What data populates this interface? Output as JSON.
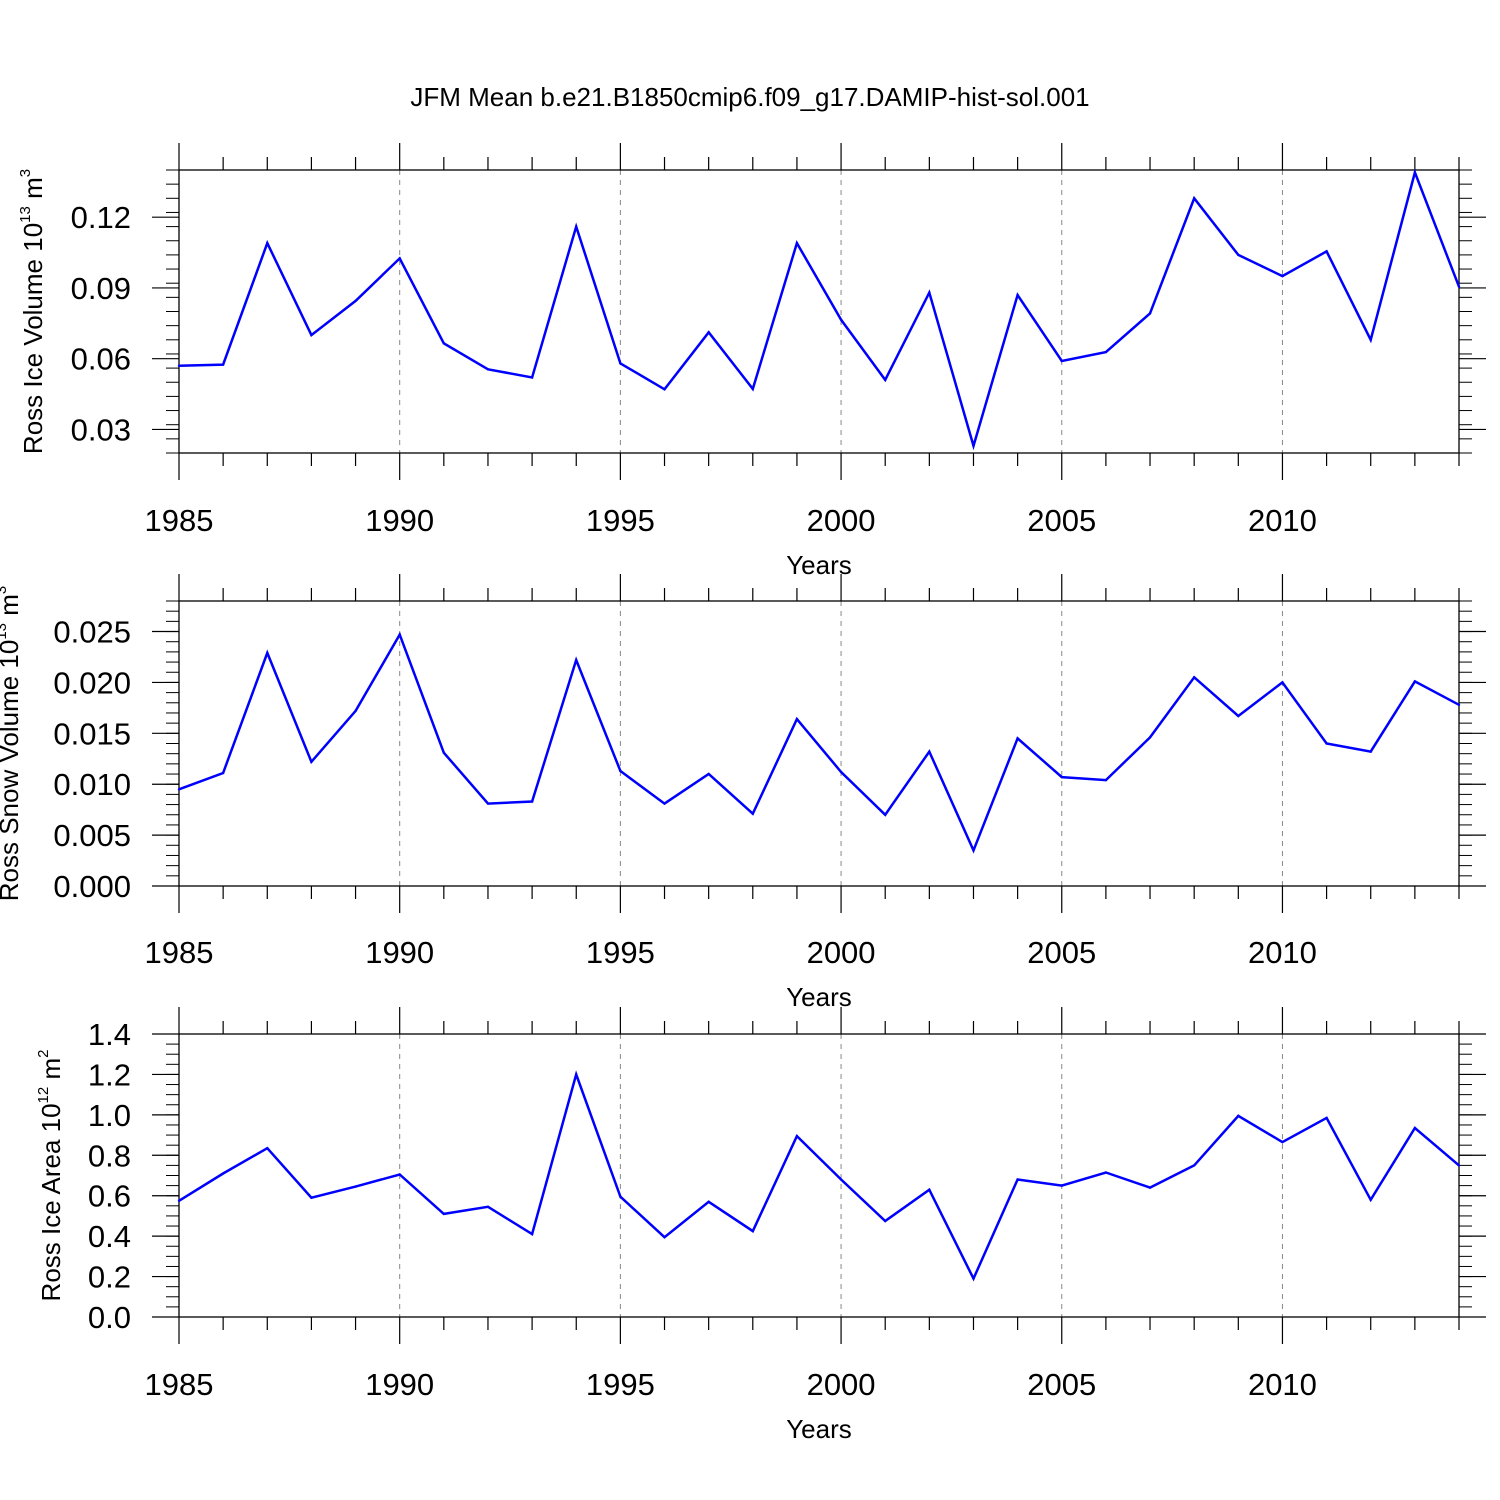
{
  "title": "JFM Mean b.e21.B1850cmip6.f09_g17.DAMIP-hist-sol.001",
  "colors": {
    "line": "#0000ff",
    "frame": "#000000",
    "grid": "#888888"
  },
  "chart_data": [
    {
      "type": "line",
      "xlabel": "Years",
      "ylabel": {
        "text": "Ross Ice Volume 10",
        "exp": "13",
        "unit": " m",
        "unit_exp": "3"
      },
      "xlim": [
        1985,
        2014
      ],
      "ylim": [
        0.02,
        0.14
      ],
      "yticks": [
        0.03,
        0.06,
        0.09,
        0.12
      ],
      "ytick_labels": [
        "0.03",
        "0.06",
        "0.09",
        "0.12"
      ],
      "yminor_step": 0.006,
      "xticks": [
        1985,
        1990,
        1995,
        2000,
        2005,
        2010
      ],
      "xtick_labels": [
        "1985",
        "1990",
        "1995",
        "2000",
        "2005",
        "2010"
      ],
      "x": [
        1985,
        1986,
        1987,
        1988,
        1989,
        1990,
        1991,
        1992,
        1993,
        1994,
        1995,
        1996,
        1997,
        1998,
        1999,
        2000,
        2001,
        2002,
        2003,
        2004,
        2005,
        2006,
        2007,
        2008,
        2009,
        2010,
        2011,
        2012,
        2013,
        2014
      ],
      "values": [
        0.057,
        0.0575,
        0.109,
        0.07,
        0.0845,
        0.1025,
        0.0665,
        0.0555,
        0.052,
        0.116,
        0.058,
        0.047,
        0.0712,
        0.0472,
        0.109,
        0.0765,
        0.051,
        0.088,
        0.023,
        0.087,
        0.059,
        0.0628,
        0.0792,
        0.128,
        0.104,
        0.095,
        0.1055,
        0.068,
        0.139,
        0.0905
      ]
    },
    {
      "type": "line",
      "xlabel": "Years",
      "ylabel": {
        "text": "Ross Snow Volume 10",
        "exp": "13",
        "unit": " m",
        "unit_exp": "3"
      },
      "xlim": [
        1985,
        2014
      ],
      "ylim": [
        0.0,
        0.028
      ],
      "yticks": [
        0.0,
        0.005,
        0.01,
        0.015,
        0.02,
        0.025
      ],
      "ytick_labels": [
        "0.000",
        "0.005",
        "0.010",
        "0.015",
        "0.020",
        "0.025"
      ],
      "yminor_step": 0.001,
      "xticks": [
        1985,
        1990,
        1995,
        2000,
        2005,
        2010
      ],
      "xtick_labels": [
        "1985",
        "1990",
        "1995",
        "2000",
        "2005",
        "2010"
      ],
      "x": [
        1985,
        1986,
        1987,
        1988,
        1989,
        1990,
        1991,
        1992,
        1993,
        1994,
        1995,
        1996,
        1997,
        1998,
        1999,
        2000,
        2001,
        2002,
        2003,
        2004,
        2005,
        2006,
        2007,
        2008,
        2009,
        2010,
        2011,
        2012,
        2013,
        2014
      ],
      "values": [
        0.0095,
        0.0111,
        0.0229,
        0.0122,
        0.0172,
        0.0247,
        0.0131,
        0.0081,
        0.0083,
        0.0222,
        0.0113,
        0.0081,
        0.011,
        0.0071,
        0.0164,
        0.0112,
        0.007,
        0.0132,
        0.0035,
        0.0145,
        0.0107,
        0.0104,
        0.0146,
        0.0205,
        0.0167,
        0.02,
        0.014,
        0.0132,
        0.0201,
        0.0178
      ]
    },
    {
      "type": "line",
      "xlabel": "Years",
      "ylabel": {
        "text": "Ross Ice Area 10",
        "exp": "12",
        "unit": " m",
        "unit_exp": "2"
      },
      "xlim": [
        1985,
        2014
      ],
      "ylim": [
        0.0,
        1.4
      ],
      "yticks": [
        0.0,
        0.2,
        0.4,
        0.6,
        0.8,
        1.0,
        1.2,
        1.4
      ],
      "ytick_labels": [
        "0.0",
        "0.2",
        "0.4",
        "0.6",
        "0.8",
        "1.0",
        "1.2",
        "1.4"
      ],
      "yminor_step": 0.05,
      "xticks": [
        1985,
        1990,
        1995,
        2000,
        2005,
        2010
      ],
      "xtick_labels": [
        "1985",
        "1990",
        "1995",
        "2000",
        "2005",
        "2010"
      ],
      "x": [
        1985,
        1986,
        1987,
        1988,
        1989,
        1990,
        1991,
        1992,
        1993,
        1994,
        1995,
        1996,
        1997,
        1998,
        1999,
        2000,
        2001,
        2002,
        2003,
        2004,
        2005,
        2006,
        2007,
        2008,
        2009,
        2010,
        2011,
        2012,
        2013,
        2014
      ],
      "values": [
        0.575,
        0.71,
        0.835,
        0.59,
        0.645,
        0.705,
        0.51,
        0.545,
        0.41,
        1.2,
        0.595,
        0.395,
        0.57,
        0.425,
        0.895,
        0.68,
        0.475,
        0.63,
        0.19,
        0.68,
        0.65,
        0.715,
        0.64,
        0.75,
        0.995,
        0.865,
        0.985,
        0.58,
        0.935,
        0.75
      ]
    }
  ]
}
